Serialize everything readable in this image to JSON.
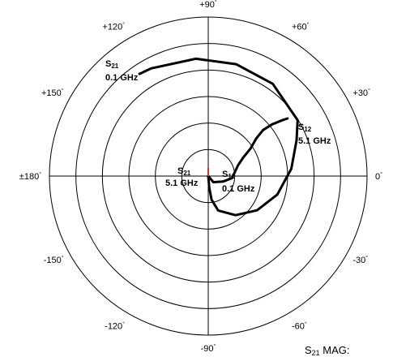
{
  "chart_data": {
    "type": "polar_line",
    "angular_ticks": [
      {
        "angle": 90,
        "label": "+90"
      },
      {
        "angle": 60,
        "label": "+60"
      },
      {
        "angle": 30,
        "label": "+30"
      },
      {
        "angle": 0,
        "label": "0"
      },
      {
        "angle": -30,
        "label": "-30"
      },
      {
        "angle": -60,
        "label": "-60"
      },
      {
        "angle": -90,
        "label": "-90"
      },
      {
        "angle": -120,
        "label": "-120"
      },
      {
        "angle": -150,
        "label": "-150"
      },
      {
        "angle": 180,
        "label": "±180"
      },
      {
        "angle": 150,
        "label": "+150"
      },
      {
        "angle": 120,
        "label": "+120"
      }
    ],
    "degree_symbol": "°",
    "rings": 6,
    "series": [
      {
        "name": "S21",
        "points": [
          [
            0.0,
            -90
          ],
          [
            0.45,
            -85
          ],
          [
            0.9,
            -82
          ],
          [
            1.35,
            -74
          ],
          [
            1.8,
            -55
          ],
          [
            2.25,
            -35
          ],
          [
            2.7,
            -15
          ],
          [
            3.15,
            5
          ],
          [
            3.6,
            22
          ],
          [
            3.98,
            32
          ],
          [
            4.25,
            55
          ],
          [
            4.35,
            76
          ],
          [
            4.45,
            96
          ],
          [
            4.6,
            118
          ],
          [
            4.65,
            124
          ]
        ],
        "start_label": {
          "name": "S21",
          "freq": "0.1 GHz"
        },
        "end_label": {
          "name": "S21",
          "freq": "5.1 GHz"
        }
      },
      {
        "name": "S12",
        "points": [
          [
            0.0,
            -90
          ],
          [
            0.3,
            -50
          ],
          [
            0.6,
            -20
          ],
          [
            0.9,
            -5
          ],
          [
            1.2,
            20
          ],
          [
            1.5,
            28
          ],
          [
            1.9,
            33
          ],
          [
            2.3,
            38
          ],
          [
            2.7,
            40
          ],
          [
            3.1,
            39
          ],
          [
            3.5,
            37
          ],
          [
            3.7,
            36
          ]
        ],
        "start_label": {
          "name": "S12",
          "freq": "0.1 GHz"
        },
        "end_label": {
          "name": "S12",
          "freq": "5.1 GHz"
        }
      }
    ],
    "footer": "S21 MAG:"
  }
}
